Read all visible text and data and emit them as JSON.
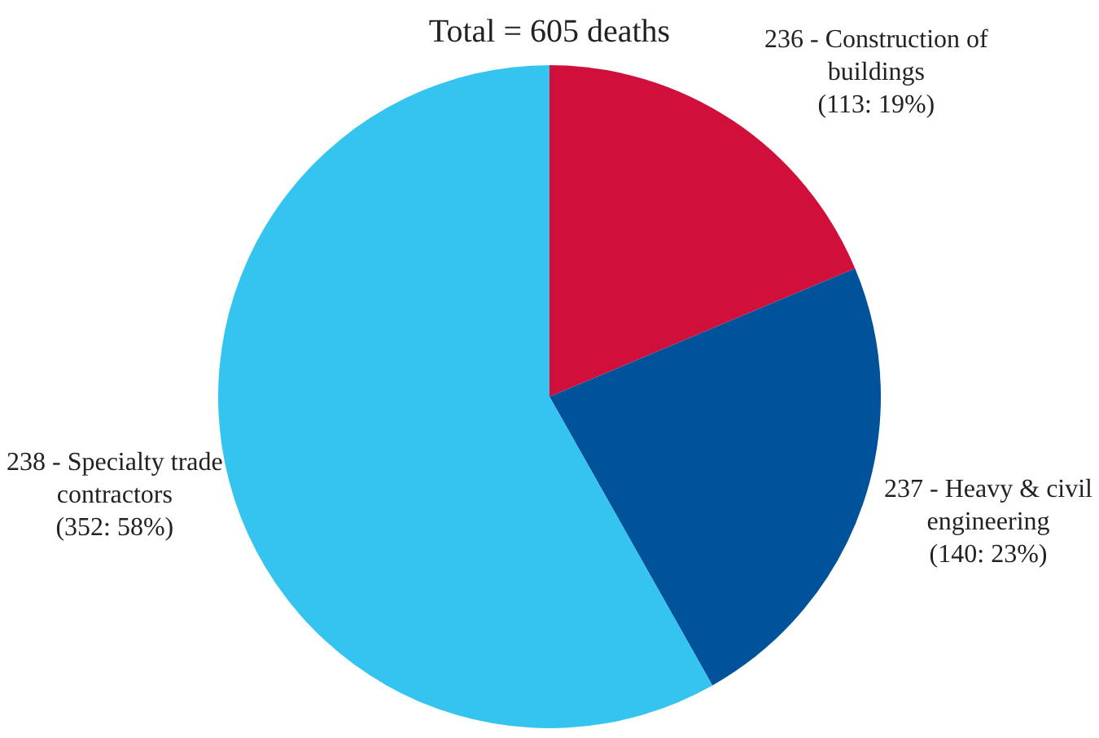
{
  "chart_data": {
    "type": "pie",
    "title": "Total = 605 deaths",
    "categories": [
      "236 - Construction of buildings",
      "237 - Heavy & civil engineering",
      "238 - Specialty trade contractors"
    ],
    "values": [
      113,
      140,
      352
    ],
    "value_labels": [
      "(113: 19%)",
      "(140: 23%)",
      "(352: 58%)"
    ],
    "colors": [
      "#d0103a",
      "#00529b",
      "#35c4f0"
    ],
    "legend": false
  }
}
